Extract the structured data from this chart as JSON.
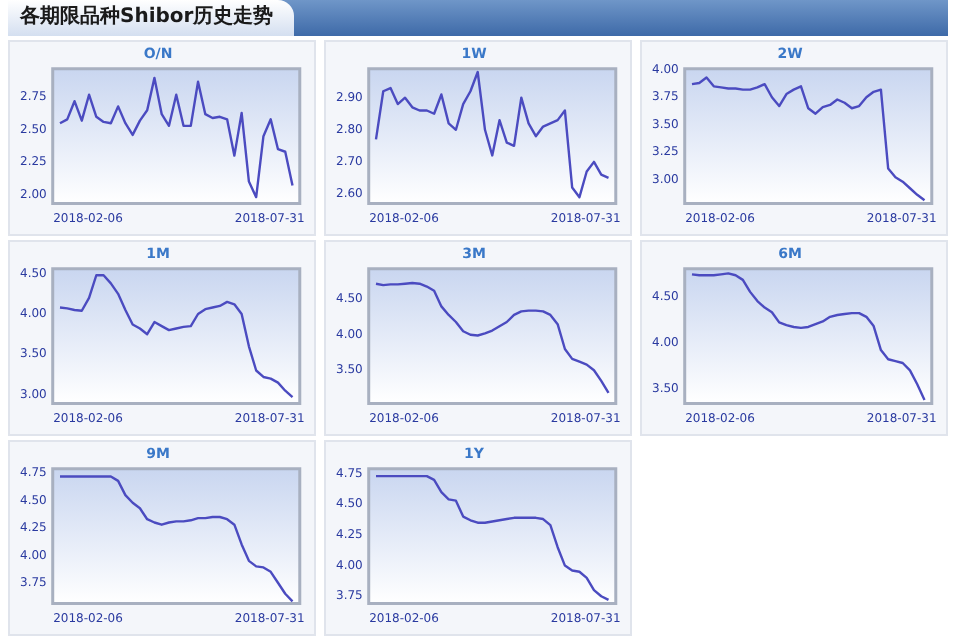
{
  "chart_data": [
    {
      "type": "other",
      "title": "各期限品种Shibor历史走势"
    },
    {
      "type": "line",
      "title": "O/N",
      "x": [
        "2018-01-10",
        "2018-01-17",
        "2018-01-24",
        "2018-01-31",
        "2018-02-07",
        "2018-02-14",
        "2018-02-21",
        "2018-02-28",
        "2018-03-07",
        "2018-03-14",
        "2018-03-21",
        "2018-03-28",
        "2018-04-04",
        "2018-04-11",
        "2018-04-18",
        "2018-04-25",
        "2018-05-02",
        "2018-05-09",
        "2018-05-16",
        "2018-05-23",
        "2018-05-30",
        "2018-06-06",
        "2018-06-13",
        "2018-06-20",
        "2018-06-27",
        "2018-07-04",
        "2018-07-11",
        "2018-07-18",
        "2018-07-25",
        "2018-08-01",
        "2018-08-08",
        "2018-08-15",
        "2018-08-22"
      ],
      "series": [
        {
          "color": "#4b4bc0",
          "values": [
            2.55,
            2.58,
            2.72,
            2.57,
            2.77,
            2.6,
            2.56,
            2.55,
            2.68,
            2.55,
            2.46,
            2.57,
            2.65,
            2.9,
            2.62,
            2.53,
            2.77,
            2.53,
            2.53,
            2.87,
            2.62,
            2.59,
            2.6,
            2.58,
            2.3,
            2.63,
            2.1,
            1.98,
            2.45,
            2.58,
            2.35,
            2.33,
            2.07
          ]
        }
      ],
      "xlim": [
        "2018-01-03",
        "2018-08-29"
      ],
      "xticks": [
        "2018-02-06",
        "2018-07-31"
      ],
      "ylim": [
        1.93,
        2.97
      ],
      "yticks": [
        {
          "value": 2,
          "label": "2.00"
        },
        {
          "value": 2.25,
          "label": "2.25"
        },
        {
          "value": 2.5,
          "label": "2.50"
        },
        {
          "value": 2.75,
          "label": "2.75"
        }
      ]
    },
    {
      "type": "line",
      "title": "1W",
      "x": [
        "2018-01-10",
        "2018-01-17",
        "2018-01-24",
        "2018-01-31",
        "2018-02-07",
        "2018-02-14",
        "2018-02-21",
        "2018-02-28",
        "2018-03-07",
        "2018-03-14",
        "2018-03-21",
        "2018-03-28",
        "2018-04-04",
        "2018-04-11",
        "2018-04-18",
        "2018-04-25",
        "2018-05-02",
        "2018-05-09",
        "2018-05-16",
        "2018-05-23",
        "2018-05-30",
        "2018-06-06",
        "2018-06-13",
        "2018-06-20",
        "2018-06-27",
        "2018-07-04",
        "2018-07-11",
        "2018-07-18",
        "2018-07-25",
        "2018-08-01",
        "2018-08-08",
        "2018-08-15",
        "2018-08-22"
      ],
      "series": [
        {
          "color": "#4b4bc0",
          "values": [
            2.77,
            2.92,
            2.93,
            2.88,
            2.9,
            2.87,
            2.86,
            2.86,
            2.85,
            2.91,
            2.82,
            2.8,
            2.88,
            2.92,
            2.98,
            2.8,
            2.72,
            2.83,
            2.76,
            2.75,
            2.9,
            2.82,
            2.78,
            2.81,
            2.82,
            2.83,
            2.86,
            2.62,
            2.59,
            2.67,
            2.7,
            2.66,
            2.65
          ]
        }
      ],
      "xlim": [
        "2018-01-03",
        "2018-08-29"
      ],
      "xticks": [
        "2018-02-06",
        "2018-07-31"
      ],
      "ylim": [
        2.57,
        2.99
      ],
      "yticks": [
        {
          "value": 2.6,
          "label": "2.60"
        },
        {
          "value": 2.7,
          "label": "2.70"
        },
        {
          "value": 2.8,
          "label": "2.80"
        },
        {
          "value": 2.9,
          "label": "2.90"
        }
      ]
    },
    {
      "type": "line",
      "title": "2W",
      "x": [
        "2018-01-10",
        "2018-01-17",
        "2018-01-24",
        "2018-01-31",
        "2018-02-07",
        "2018-02-14",
        "2018-02-21",
        "2018-02-28",
        "2018-03-07",
        "2018-03-14",
        "2018-03-21",
        "2018-03-28",
        "2018-04-04",
        "2018-04-11",
        "2018-04-18",
        "2018-04-25",
        "2018-05-02",
        "2018-05-09",
        "2018-05-16",
        "2018-05-23",
        "2018-05-30",
        "2018-06-06",
        "2018-06-13",
        "2018-06-20",
        "2018-06-27",
        "2018-07-04",
        "2018-07-11",
        "2018-07-18",
        "2018-07-25",
        "2018-08-01",
        "2018-08-08",
        "2018-08-15",
        "2018-08-22"
      ],
      "series": [
        {
          "color": "#4b4bc0",
          "values": [
            3.87,
            3.88,
            3.93,
            3.85,
            3.84,
            3.83,
            3.83,
            3.82,
            3.82,
            3.84,
            3.87,
            3.75,
            3.67,
            3.78,
            3.82,
            3.85,
            3.65,
            3.6,
            3.66,
            3.68,
            3.73,
            3.7,
            3.65,
            3.67,
            3.75,
            3.8,
            3.82,
            3.1,
            3.02,
            2.98,
            2.92,
            2.86,
            2.81
          ]
        }
      ],
      "xlim": [
        "2018-01-03",
        "2018-08-29"
      ],
      "xticks": [
        "2018-02-06",
        "2018-07-31"
      ],
      "ylim": [
        2.78,
        4.01
      ],
      "yticks": [
        {
          "value": 3,
          "label": "3.00"
        },
        {
          "value": 3.25,
          "label": "3.25"
        },
        {
          "value": 3.5,
          "label": "3.50"
        },
        {
          "value": 3.75,
          "label": "3.75"
        },
        {
          "value": 4,
          "label": "4.00"
        }
      ]
    },
    {
      "type": "line",
      "title": "1M",
      "x": [
        "2018-01-10",
        "2018-01-17",
        "2018-01-24",
        "2018-01-31",
        "2018-02-07",
        "2018-02-14",
        "2018-02-21",
        "2018-02-28",
        "2018-03-07",
        "2018-03-14",
        "2018-03-21",
        "2018-03-28",
        "2018-04-04",
        "2018-04-11",
        "2018-04-18",
        "2018-04-25",
        "2018-05-02",
        "2018-05-09",
        "2018-05-16",
        "2018-05-23",
        "2018-05-30",
        "2018-06-06",
        "2018-06-13",
        "2018-06-20",
        "2018-06-27",
        "2018-07-04",
        "2018-07-11",
        "2018-07-18",
        "2018-07-25",
        "2018-08-01",
        "2018-08-08",
        "2018-08-15",
        "2018-08-22"
      ],
      "series": [
        {
          "color": "#4b4bc0",
          "values": [
            4.08,
            4.07,
            4.05,
            4.04,
            4.2,
            4.48,
            4.48,
            4.38,
            4.25,
            4.05,
            3.87,
            3.82,
            3.75,
            3.9,
            3.85,
            3.8,
            3.82,
            3.84,
            3.85,
            4.0,
            4.06,
            4.08,
            4.1,
            4.15,
            4.12,
            4.0,
            3.6,
            3.3,
            3.22,
            3.2,
            3.15,
            3.05,
            2.97
          ]
        }
      ],
      "xlim": [
        "2018-01-03",
        "2018-08-29"
      ],
      "xticks": [
        "2018-02-06",
        "2018-07-31"
      ],
      "ylim": [
        2.89,
        4.56
      ],
      "yticks": [
        {
          "value": 3,
          "label": "3.00"
        },
        {
          "value": 3.5,
          "label": "3.50"
        },
        {
          "value": 4,
          "label": "4.00"
        },
        {
          "value": 4.5,
          "label": "4.50"
        }
      ]
    },
    {
      "type": "line",
      "title": "3M",
      "x": [
        "2018-01-10",
        "2018-01-17",
        "2018-01-24",
        "2018-01-31",
        "2018-02-07",
        "2018-02-14",
        "2018-02-21",
        "2018-02-28",
        "2018-03-07",
        "2018-03-14",
        "2018-03-21",
        "2018-03-28",
        "2018-04-04",
        "2018-04-11",
        "2018-04-18",
        "2018-04-25",
        "2018-05-02",
        "2018-05-09",
        "2018-05-16",
        "2018-05-23",
        "2018-05-30",
        "2018-06-06",
        "2018-06-13",
        "2018-06-20",
        "2018-06-27",
        "2018-07-04",
        "2018-07-11",
        "2018-07-18",
        "2018-07-25",
        "2018-08-01",
        "2018-08-08",
        "2018-08-15",
        "2018-08-22"
      ],
      "series": [
        {
          "color": "#4b4bc0",
          "values": [
            4.72,
            4.7,
            4.71,
            4.71,
            4.72,
            4.73,
            4.72,
            4.68,
            4.62,
            4.4,
            4.28,
            4.18,
            4.05,
            4.0,
            3.99,
            4.02,
            4.06,
            4.12,
            4.18,
            4.28,
            4.33,
            4.34,
            4.34,
            4.33,
            4.28,
            4.15,
            3.8,
            3.66,
            3.62,
            3.58,
            3.5,
            3.35,
            3.18
          ]
        }
      ],
      "xlim": [
        "2018-01-03",
        "2018-08-29"
      ],
      "xticks": [
        "2018-02-06",
        "2018-07-31"
      ],
      "ylim": [
        3.03,
        4.93
      ],
      "yticks": [
        {
          "value": 3.5,
          "label": "3.50"
        },
        {
          "value": 4,
          "label": "4.00"
        },
        {
          "value": 4.5,
          "label": "4.50"
        }
      ]
    },
    {
      "type": "line",
      "title": "6M",
      "x": [
        "2018-01-10",
        "2018-01-17",
        "2018-01-24",
        "2018-01-31",
        "2018-02-07",
        "2018-02-14",
        "2018-02-21",
        "2018-02-28",
        "2018-03-07",
        "2018-03-14",
        "2018-03-21",
        "2018-03-28",
        "2018-04-04",
        "2018-04-11",
        "2018-04-18",
        "2018-04-25",
        "2018-05-02",
        "2018-05-09",
        "2018-05-16",
        "2018-05-23",
        "2018-05-30",
        "2018-06-06",
        "2018-06-13",
        "2018-06-20",
        "2018-06-27",
        "2018-07-04",
        "2018-07-11",
        "2018-07-18",
        "2018-07-25",
        "2018-08-01",
        "2018-08-08",
        "2018-08-15",
        "2018-08-22"
      ],
      "series": [
        {
          "color": "#4b4bc0",
          "values": [
            4.74,
            4.73,
            4.73,
            4.73,
            4.74,
            4.75,
            4.73,
            4.68,
            4.55,
            4.45,
            4.38,
            4.33,
            4.22,
            4.19,
            4.17,
            4.16,
            4.17,
            4.2,
            4.23,
            4.28,
            4.3,
            4.31,
            4.32,
            4.32,
            4.28,
            4.18,
            3.92,
            3.82,
            3.8,
            3.78,
            3.7,
            3.55,
            3.38
          ]
        }
      ],
      "xlim": [
        "2018-01-03",
        "2018-08-29"
      ],
      "xticks": [
        "2018-02-06",
        "2018-07-31"
      ],
      "ylim": [
        3.34,
        4.8
      ],
      "yticks": [
        {
          "value": 3.5,
          "label": "3.50"
        },
        {
          "value": 4,
          "label": "4.00"
        },
        {
          "value": 4.5,
          "label": "4.50"
        }
      ]
    },
    {
      "type": "line",
      "title": "9M",
      "x": [
        "2018-01-10",
        "2018-01-17",
        "2018-01-24",
        "2018-01-31",
        "2018-02-07",
        "2018-02-14",
        "2018-02-21",
        "2018-02-28",
        "2018-03-07",
        "2018-03-14",
        "2018-03-21",
        "2018-03-28",
        "2018-04-04",
        "2018-04-11",
        "2018-04-18",
        "2018-04-25",
        "2018-05-02",
        "2018-05-09",
        "2018-05-16",
        "2018-05-23",
        "2018-05-30",
        "2018-06-06",
        "2018-06-13",
        "2018-06-20",
        "2018-06-27",
        "2018-07-04",
        "2018-07-11",
        "2018-07-18",
        "2018-07-25",
        "2018-08-01",
        "2018-08-08",
        "2018-08-15",
        "2018-08-22"
      ],
      "series": [
        {
          "color": "#4b4bc0",
          "values": [
            4.72,
            4.72,
            4.72,
            4.72,
            4.72,
            4.72,
            4.72,
            4.72,
            4.68,
            4.55,
            4.48,
            4.43,
            4.33,
            4.3,
            4.28,
            4.3,
            4.31,
            4.31,
            4.32,
            4.34,
            4.34,
            4.35,
            4.35,
            4.33,
            4.28,
            4.1,
            3.95,
            3.9,
            3.89,
            3.85,
            3.75,
            3.65,
            3.58
          ]
        }
      ],
      "xlim": [
        "2018-01-03",
        "2018-08-29"
      ],
      "xticks": [
        "2018-02-06",
        "2018-07-31"
      ],
      "ylim": [
        3.56,
        4.79
      ],
      "yticks": [
        {
          "value": 3.75,
          "label": "3.75"
        },
        {
          "value": 4,
          "label": "4.00"
        },
        {
          "value": 4.25,
          "label": "4.25"
        },
        {
          "value": 4.5,
          "label": "4.50"
        },
        {
          "value": 4.75,
          "label": "4.75"
        }
      ]
    },
    {
      "type": "line",
      "title": "1Y",
      "x": [
        "2018-01-10",
        "2018-01-17",
        "2018-01-24",
        "2018-01-31",
        "2018-02-07",
        "2018-02-14",
        "2018-02-21",
        "2018-02-28",
        "2018-03-07",
        "2018-03-14",
        "2018-03-21",
        "2018-03-28",
        "2018-04-04",
        "2018-04-11",
        "2018-04-18",
        "2018-04-25",
        "2018-05-02",
        "2018-05-09",
        "2018-05-16",
        "2018-05-23",
        "2018-05-30",
        "2018-06-06",
        "2018-06-13",
        "2018-06-20",
        "2018-06-27",
        "2018-07-04",
        "2018-07-11",
        "2018-07-18",
        "2018-07-25",
        "2018-08-01",
        "2018-08-08",
        "2018-08-15",
        "2018-08-22"
      ],
      "series": [
        {
          "color": "#4b4bc0",
          "values": [
            4.73,
            4.73,
            4.73,
            4.73,
            4.73,
            4.73,
            4.73,
            4.73,
            4.7,
            4.6,
            4.54,
            4.53,
            4.4,
            4.37,
            4.35,
            4.35,
            4.36,
            4.37,
            4.38,
            4.39,
            4.39,
            4.39,
            4.39,
            4.38,
            4.33,
            4.15,
            4.0,
            3.96,
            3.95,
            3.9,
            3.8,
            3.75,
            3.72
          ]
        }
      ],
      "xlim": [
        "2018-01-03",
        "2018-08-29"
      ],
      "xticks": [
        "2018-02-06",
        "2018-07-31"
      ],
      "ylim": [
        3.69,
        4.79
      ],
      "yticks": [
        {
          "value": 3.75,
          "label": "3.75"
        },
        {
          "value": 4,
          "label": "4.00"
        },
        {
          "value": 4.25,
          "label": "4.25"
        },
        {
          "value": 4.5,
          "label": "4.50"
        },
        {
          "value": 4.75,
          "label": "4.75"
        }
      ]
    }
  ]
}
